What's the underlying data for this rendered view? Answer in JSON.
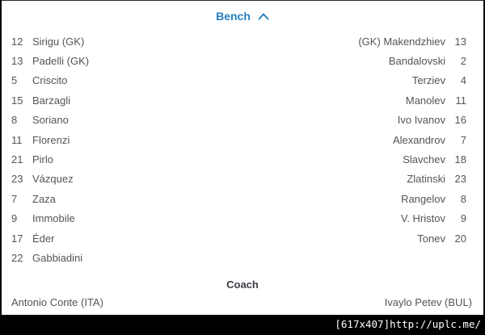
{
  "colors": {
    "accent": "#2781c0",
    "row_text": "#54545a",
    "title_text": "#3c3c44",
    "caption_bg": "#000000",
    "caption_text": "#ffffff"
  },
  "bench": {
    "title": "Bench",
    "chevron_icon": "chevron-up",
    "home_players": [
      {
        "number": "12",
        "name": "Sirigu (GK)"
      },
      {
        "number": "13",
        "name": "Padelli (GK)"
      },
      {
        "number": "5",
        "name": "Criscito"
      },
      {
        "number": "15",
        "name": "Barzagli"
      },
      {
        "number": "8",
        "name": "Soriano"
      },
      {
        "number": "11",
        "name": "Florenzi"
      },
      {
        "number": "21",
        "name": "Pirlo"
      },
      {
        "number": "23",
        "name": "Vázquez"
      },
      {
        "number": "7",
        "name": "Zaza"
      },
      {
        "number": "9",
        "name": "Immobile"
      },
      {
        "number": "17",
        "name": "Éder"
      },
      {
        "number": "22",
        "name": "Gabbiadini"
      }
    ],
    "away_players": [
      {
        "number": "13",
        "name": "(GK) Makendzhiev"
      },
      {
        "number": "2",
        "name": "Bandalovski"
      },
      {
        "number": "4",
        "name": "Terziev"
      },
      {
        "number": "11",
        "name": "Manolev"
      },
      {
        "number": "16",
        "name": "Ivo Ivanov"
      },
      {
        "number": "7",
        "name": "Alexandrov"
      },
      {
        "number": "18",
        "name": "Slavchev"
      },
      {
        "number": "23",
        "name": "Zlatinski"
      },
      {
        "number": "8",
        "name": "Rangelov"
      },
      {
        "number": "9",
        "name": "V. Hristov"
      },
      {
        "number": "20",
        "name": "Tonev"
      }
    ]
  },
  "coach": {
    "title": "Coach",
    "home": "Antonio Conte (ITA)",
    "away": "Ivaylo Petev (BUL)"
  },
  "frame": {
    "caption": "[617x407]http://uplc.me/"
  }
}
